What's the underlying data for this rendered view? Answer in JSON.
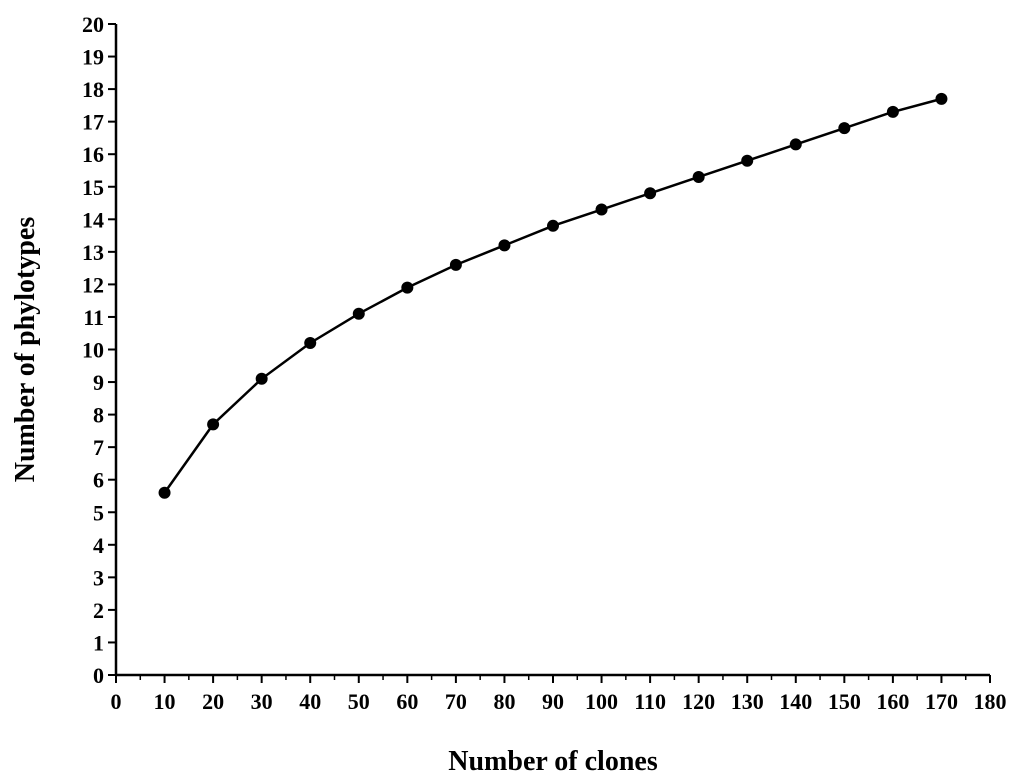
{
  "chart_data": {
    "type": "line",
    "title": "",
    "xlabel": "Number of clones",
    "ylabel": "Number of phylotypes",
    "xlim": [
      0,
      180
    ],
    "ylim": [
      0,
      20
    ],
    "xticks": [
      "0",
      "10",
      "20",
      "30",
      "40",
      "50",
      "60",
      "70",
      "80",
      "90",
      "100",
      "110",
      "120",
      "130",
      "140",
      "150",
      "160",
      "170",
      "180"
    ],
    "yticks": [
      "0",
      "1",
      "2",
      "3",
      "4",
      "5",
      "6",
      "7",
      "8",
      "9",
      "10",
      "11",
      "12",
      "13",
      "14",
      "15",
      "16",
      "17",
      "18",
      "19",
      "20"
    ],
    "grid": false,
    "legend": "none",
    "series": [
      {
        "x": [
          10,
          20,
          30,
          40,
          50,
          60,
          70,
          80,
          90,
          100,
          110,
          120,
          130,
          140,
          150,
          160,
          170
        ],
        "y": [
          5.6,
          7.7,
          9.1,
          10.2,
          11.1,
          11.9,
          12.6,
          13.2,
          13.8,
          14.3,
          14.8,
          15.3,
          15.8,
          16.3,
          16.8,
          17.3,
          17.7
        ]
      }
    ],
    "colors": {
      "line": "#000000",
      "marker": "#000000",
      "axis": "#000000"
    }
  }
}
